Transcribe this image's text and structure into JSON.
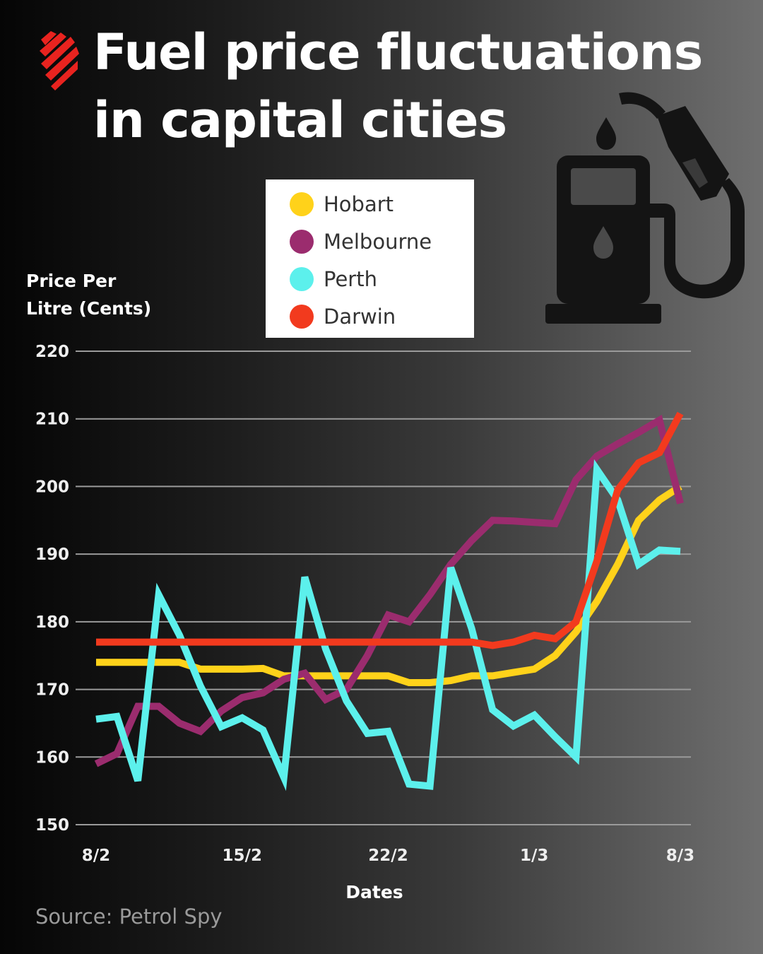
{
  "header": {
    "title_line1": "Fuel price fluctuations",
    "title_line2": "in capital cities",
    "logo": "sbs-logo",
    "illustration": "fuel-pump-icon"
  },
  "source": "Source: Petrol Spy",
  "chart_data": {
    "type": "line",
    "title": "Fuel price fluctuations in capital cities",
    "ylabel_line1": "Price Per",
    "ylabel_line2": "Litre (Cents)",
    "xlabel": "Dates",
    "ylim": [
      150,
      220
    ],
    "yticks": [
      150,
      160,
      170,
      180,
      190,
      200,
      210,
      220
    ],
    "xtick_labels": [
      "8/2",
      "15/2",
      "22/2",
      "1/3",
      "8/3"
    ],
    "grid": "horizontal",
    "legend_placement": "top-center",
    "x": [
      "8/2",
      "9/2",
      "10/2",
      "11/2",
      "12/2",
      "13/2",
      "14/2",
      "15/2",
      "16/2",
      "17/2",
      "18/2",
      "19/2",
      "20/2",
      "21/2",
      "22/2",
      "23/2",
      "24/2",
      "25/2",
      "26/2",
      "27/2",
      "28/2",
      "1/3",
      "2/3",
      "3/3",
      "4/3",
      "5/3",
      "6/3",
      "7/3",
      "8/3"
    ],
    "series": [
      {
        "name": "Hobart",
        "color": "#FFD21A",
        "values": [
          174,
          174,
          174,
          174,
          174,
          173,
          173,
          173,
          173.1,
          172,
          172,
          172,
          172,
          172,
          172,
          171,
          171,
          171.3,
          172,
          172,
          172.5,
          173,
          175,
          178.5,
          183,
          188.5,
          195,
          198,
          200
        ]
      },
      {
        "name": "Melbourne",
        "color": "#9B2C6E",
        "values": [
          159,
          160.5,
          167.5,
          167.5,
          165,
          163.8,
          166.8,
          168.8,
          169.5,
          171.5,
          172.4,
          168.5,
          170,
          175,
          181,
          180,
          184,
          188.5,
          192,
          195,
          194.9,
          194.7,
          194.5,
          201,
          204.5,
          206.3,
          208,
          209.8,
          197.5
        ]
      },
      {
        "name": "Perth",
        "color": "#5CF0EC",
        "values": [
          165.6,
          166,
          156.5,
          184,
          178,
          170.5,
          164.5,
          165.8,
          164,
          157,
          186.6,
          176,
          168.3,
          163.5,
          163.8,
          156,
          155.7,
          188,
          179,
          167,
          164.6,
          166.2,
          163,
          160,
          202.5,
          198,
          188.5,
          190.6,
          190.4
        ]
      },
      {
        "name": "Darwin",
        "color": "#F23A1E",
        "values": [
          177,
          177,
          177,
          177,
          177,
          177,
          177,
          177,
          177,
          177,
          177,
          177,
          177,
          177,
          177,
          177,
          177,
          177,
          177,
          176.5,
          177,
          178,
          177.5,
          180,
          189,
          199.5,
          203.5,
          205,
          210.8
        ]
      }
    ]
  }
}
